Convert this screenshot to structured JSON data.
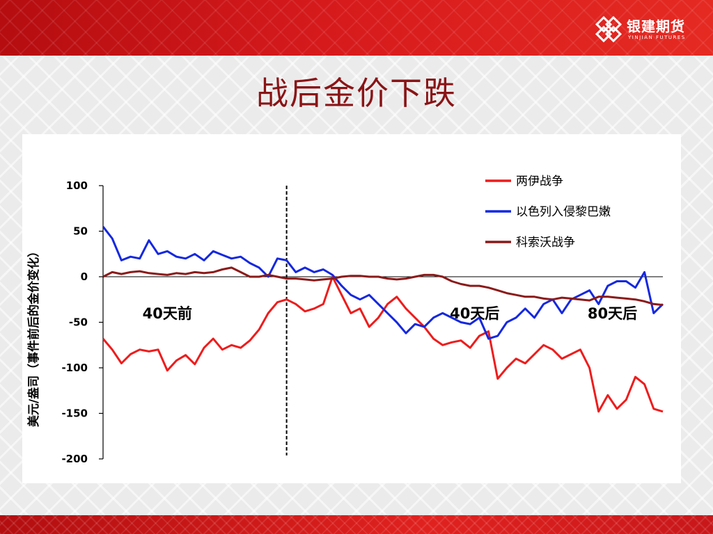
{
  "header": {
    "logo_text": "银建期货",
    "logo_sub": "YINJIAN FUTURES"
  },
  "slide": {
    "title": "战后金价下跌"
  },
  "colors": {
    "banner_red": "#d61a1c",
    "title_color": "#8a1416"
  },
  "chart_data": {
    "type": "line",
    "title": "",
    "xlabel": "",
    "ylabel": "美元/盎司（事件前后的金价变化）",
    "ylim": [
      -200,
      100
    ],
    "yticks": [
      100,
      50,
      0,
      -50,
      -100,
      -150,
      -200
    ],
    "x_domain": [
      -40,
      82
    ],
    "event_line_x": 0,
    "zero_line": true,
    "grid": false,
    "legend_position": "top-right",
    "annotations": [
      {
        "text": "40天前",
        "x": -26,
        "y": -32
      },
      {
        "text": "40天后",
        "x": 41,
        "y": -32
      },
      {
        "text": "80天后",
        "x": 71,
        "y": -32
      }
    ],
    "x": [
      -40,
      -38,
      -36,
      -34,
      -32,
      -30,
      -28,
      -26,
      -24,
      -22,
      -20,
      -18,
      -16,
      -14,
      -12,
      -10,
      -8,
      -6,
      -4,
      -2,
      0,
      2,
      4,
      6,
      8,
      10,
      12,
      14,
      16,
      18,
      20,
      22,
      24,
      26,
      28,
      30,
      32,
      34,
      36,
      38,
      40,
      42,
      44,
      46,
      48,
      50,
      52,
      54,
      56,
      58,
      60,
      62,
      64,
      66,
      68,
      70,
      72,
      74,
      76,
      78,
      80,
      82
    ],
    "series": [
      {
        "name": "两伊战争",
        "color": "#ee1c1c",
        "values": [
          -68,
          -80,
          -95,
          -85,
          -80,
          -82,
          -80,
          -103,
          -92,
          -86,
          -96,
          -78,
          -68,
          -80,
          -75,
          -78,
          -70,
          -58,
          -40,
          -28,
          -25,
          -30,
          -38,
          -35,
          -30,
          0,
          -20,
          -40,
          -35,
          -55,
          -45,
          -30,
          -22,
          -35,
          -45,
          -55,
          -68,
          -75,
          -72,
          -70,
          -78,
          -65,
          -60,
          -112,
          -100,
          -90,
          -95,
          -85,
          -75,
          -80,
          -90,
          -85,
          -80,
          -100,
          -148,
          -130,
          -145,
          -135,
          -110,
          -118,
          -145,
          -148
        ]
      },
      {
        "name": "以色列入侵黎巴嫩",
        "color": "#1428e0",
        "values": [
          55,
          42,
          18,
          22,
          20,
          40,
          25,
          28,
          22,
          20,
          25,
          18,
          28,
          24,
          20,
          22,
          15,
          10,
          0,
          20,
          18,
          5,
          10,
          5,
          8,
          2,
          -10,
          -20,
          -25,
          -20,
          -30,
          -40,
          -50,
          -62,
          -52,
          -55,
          -45,
          -40,
          -45,
          -50,
          -52,
          -45,
          -68,
          -65,
          -50,
          -45,
          -35,
          -45,
          -30,
          -25,
          -40,
          -25,
          -20,
          -15,
          -30,
          -10,
          -5,
          -5,
          -12,
          5,
          -40,
          -30
        ]
      },
      {
        "name": "科索沃战争",
        "color": "#8b1a1a",
        "values": [
          0,
          5,
          3,
          5,
          6,
          4,
          3,
          2,
          4,
          3,
          5,
          4,
          5,
          8,
          10,
          5,
          0,
          0,
          2,
          0,
          -2,
          -2,
          -3,
          -4,
          -3,
          -2,
          0,
          1,
          1,
          0,
          0,
          -2,
          -3,
          -2,
          0,
          2,
          2,
          0,
          -5,
          -8,
          -10,
          -10,
          -12,
          -15,
          -18,
          -20,
          -22,
          -22,
          -24,
          -25,
          -23,
          -24,
          -25,
          -26,
          -22,
          -22,
          -23,
          -24,
          -25,
          -27,
          -30,
          -31
        ]
      }
    ]
  }
}
